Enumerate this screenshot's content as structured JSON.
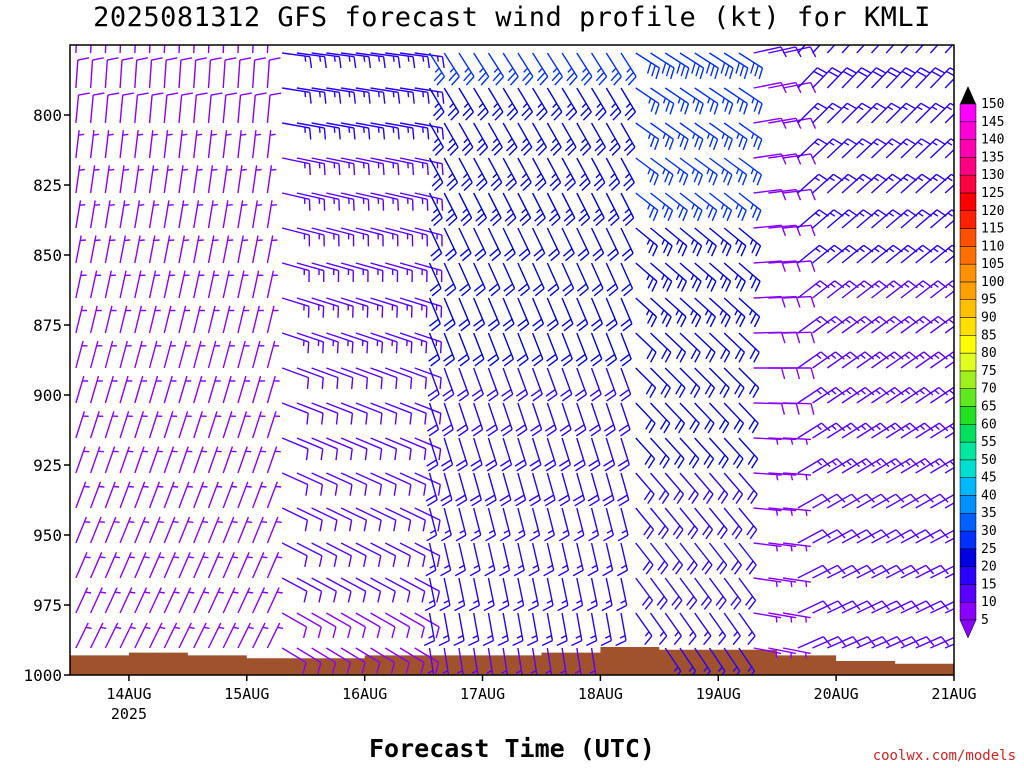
{
  "chart_data": {
    "type": "wind_barb_time_height",
    "title": "2025081312 GFS forecast wind profile (kt) for KMLI",
    "xlabel": "Forecast Time (UTC)",
    "credit": "coolwx.com/models",
    "y_axis": {
      "label": "",
      "unit": "hPa",
      "ticks": [
        800,
        825,
        850,
        875,
        900,
        925,
        950,
        975,
        1000
      ],
      "range": [
        775,
        1000
      ],
      "inverted": true
    },
    "x_axis": {
      "ticks": [
        "14AUG",
        "15AUG",
        "16AUG",
        "17AUG",
        "18AUG",
        "19AUG",
        "20AUG",
        "21AUG"
      ],
      "year_label": "2025",
      "year_under": "14AUG",
      "range_days": [
        13.5,
        21.0
      ]
    },
    "colorbar": {
      "unit": "kt",
      "levels": [
        5,
        10,
        15,
        20,
        25,
        30,
        35,
        40,
        45,
        50,
        55,
        60,
        65,
        70,
        75,
        80,
        85,
        90,
        95,
        100,
        105,
        110,
        115,
        120,
        125,
        130,
        135,
        140,
        145,
        150
      ],
      "colors": [
        "#8a00ff",
        "#5a00ff",
        "#2a00ff",
        "#0000e0",
        "#0030ff",
        "#0060ff",
        "#0090ff",
        "#00b8ff",
        "#00e0d0",
        "#00e8a0",
        "#00e060",
        "#20e020",
        "#60e820",
        "#a0f020",
        "#e0ff20",
        "#ffff00",
        "#ffe000",
        "#ffc000",
        "#ffa000",
        "#ff9000",
        "#ff7000",
        "#ff5000",
        "#ff2000",
        "#ff0000",
        "#ff0040",
        "#ff0080",
        "#ff00b0",
        "#ff00d8",
        "#ff00ff",
        "#000000"
      ]
    },
    "terrain_color": "#a0522d",
    "surface_pressure_hpa": [
      {
        "t": "2025-08-13T12Z",
        "p": 993
      },
      {
        "t": "2025-08-14T00Z",
        "p": 992
      },
      {
        "t": "2025-08-14T12Z",
        "p": 993
      },
      {
        "t": "2025-08-15T00Z",
        "p": 994
      },
      {
        "t": "2025-08-15T12Z",
        "p": 994
      },
      {
        "t": "2025-08-16T00Z",
        "p": 993
      },
      {
        "t": "2025-08-16T12Z",
        "p": 993
      },
      {
        "t": "2025-08-17T00Z",
        "p": 993
      },
      {
        "t": "2025-08-17T12Z",
        "p": 992
      },
      {
        "t": "2025-08-18T00Z",
        "p": 990
      },
      {
        "t": "2025-08-18T12Z",
        "p": 991
      },
      {
        "t": "2025-08-19T00Z",
        "p": 991
      },
      {
        "t": "2025-08-19T12Z",
        "p": 993
      },
      {
        "t": "2025-08-20T00Z",
        "p": 995
      },
      {
        "t": "2025-08-20T12Z",
        "p": 996
      },
      {
        "t": "2025-08-21T00Z",
        "p": 996
      }
    ],
    "wind_regimes": [
      {
        "period": "13AUG12Z-15AUG06Z",
        "direction": "north/northeast",
        "speed_kt": [
          5,
          15
        ]
      },
      {
        "period": "15AUG06Z-16AUG12Z",
        "direction": "east/southeast",
        "speed_kt": [
          10,
          25
        ]
      },
      {
        "period": "16AUG12Z-18AUG06Z",
        "direction": "south/southeast",
        "speed_kt": [
          15,
          35
        ]
      },
      {
        "period": "18AUG06Z-19AUG06Z",
        "direction": "southeast",
        "speed_kt": [
          15,
          35
        ]
      },
      {
        "period": "19AUG12Z-21AUG00Z",
        "direction": "northeast",
        "speed_kt": [
          10,
          25
        ]
      }
    ]
  }
}
